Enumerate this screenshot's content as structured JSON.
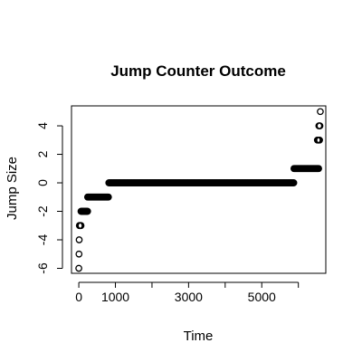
{
  "chart_data": {
    "type": "scatter",
    "title": "Jump Counter Outcome",
    "xlabel": "Time",
    "ylabel": "Jump Size",
    "xlim": [
      -200,
      6750
    ],
    "ylim": [
      -6.35,
      5.4
    ],
    "x_ticks": [
      0,
      1000,
      2000,
      3000,
      4000,
      5000,
      6000
    ],
    "x_tick_labels": [
      "0",
      "1000",
      "",
      "3000",
      "",
      "5000",
      ""
    ],
    "y_ticks": [
      -6,
      -4,
      -2,
      0,
      2,
      4
    ],
    "y_tick_labels": [
      "-6",
      "-4",
      "-2",
      "0",
      "2",
      "4"
    ],
    "grid": false,
    "marker": "open-circle",
    "series": [
      {
        "segments": [
          {
            "y": -6,
            "x_start": 0,
            "x_end": 0,
            "step": 1
          },
          {
            "y": -5,
            "x_start": 5,
            "x_end": 5,
            "step": 1
          },
          {
            "y": -4,
            "x_start": 10,
            "x_end": 10,
            "step": 1
          },
          {
            "y": -3,
            "x_start": 15,
            "x_end": 60,
            "step": 15
          },
          {
            "y": -2,
            "x_start": 60,
            "x_end": 240,
            "step": 15
          },
          {
            "y": -1,
            "x_start": 240,
            "x_end": 820,
            "step": 15
          },
          {
            "y": 0,
            "x_start": 820,
            "x_end": 5880,
            "step": 15
          },
          {
            "y": 1,
            "x_start": 5880,
            "x_end": 6560,
            "step": 15
          },
          {
            "y": 3,
            "x_start": 6520,
            "x_end": 6580,
            "step": 15
          },
          {
            "y": 4,
            "x_start": 6560,
            "x_end": 6600,
            "step": 15
          },
          {
            "y": 5,
            "x_start": 6600,
            "x_end": 6600,
            "step": 1
          }
        ]
      }
    ]
  }
}
